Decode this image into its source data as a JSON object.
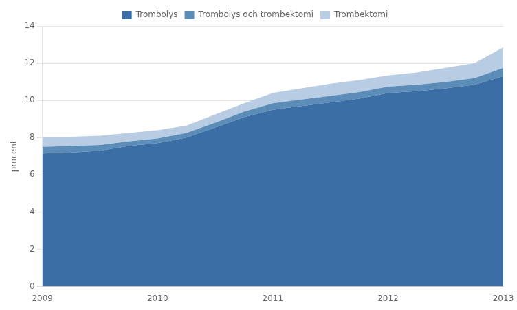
{
  "chart_data": {
    "type": "area",
    "ylabel": "procent",
    "x": [
      2009,
      2009.25,
      2009.5,
      2009.75,
      2010,
      2010.25,
      2010.5,
      2010.75,
      2011,
      2011.25,
      2011.5,
      2011.75,
      2012,
      2012.25,
      2012.5,
      2012.75,
      2013
    ],
    "series": [
      {
        "name": "Trombolys",
        "color": "#3A6EA5",
        "values": [
          7.15,
          7.2,
          7.3,
          7.55,
          7.7,
          8.0,
          8.55,
          9.1,
          9.5,
          9.7,
          9.9,
          10.1,
          10.4,
          10.5,
          10.65,
          10.85,
          11.3
        ]
      },
      {
        "name": "Trombolys och trombektomi",
        "color": "#5B8DB8",
        "values": [
          0.35,
          0.35,
          0.3,
          0.25,
          0.25,
          0.25,
          0.25,
          0.3,
          0.35,
          0.35,
          0.35,
          0.35,
          0.35,
          0.35,
          0.35,
          0.35,
          0.45
        ]
      },
      {
        "name": "Trombektomi",
        "color": "#B8CCE4",
        "values": [
          0.55,
          0.5,
          0.5,
          0.45,
          0.45,
          0.4,
          0.45,
          0.45,
          0.55,
          0.6,
          0.65,
          0.65,
          0.6,
          0.65,
          0.75,
          0.8,
          1.1
        ]
      }
    ],
    "stacked": true,
    "xlim": [
      2009,
      2013
    ],
    "xticks": [
      2009,
      2010,
      2011,
      2012,
      2013
    ],
    "ylim": [
      0,
      14
    ],
    "yticks": [
      0,
      2,
      4,
      6,
      8,
      10,
      12,
      14
    ],
    "grid": true,
    "legend": "top"
  }
}
